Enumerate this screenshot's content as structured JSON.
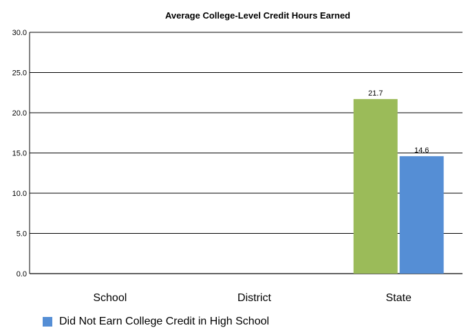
{
  "chart_data": {
    "type": "bar",
    "title": "Average College-Level Credit Hours Earned",
    "categories": [
      "School",
      "District",
      "State"
    ],
    "ylim": [
      0,
      30
    ],
    "yticks": [
      "0.0",
      "5.0",
      "10.0",
      "15.0",
      "20.0",
      "25.0",
      "30.0"
    ],
    "grid": true,
    "series": [
      {
        "values": [
          null,
          null,
          21.7
        ],
        "labels": [
          "",
          "",
          "21.7"
        ],
        "color": "#9bbb59"
      },
      {
        "name": "Did Not Earn College Credit in High School",
        "values": [
          null,
          null,
          14.6
        ],
        "labels": [
          "",
          "",
          "14.6"
        ],
        "color": "#558ed5"
      }
    ],
    "legend_position": "bottom-left"
  }
}
